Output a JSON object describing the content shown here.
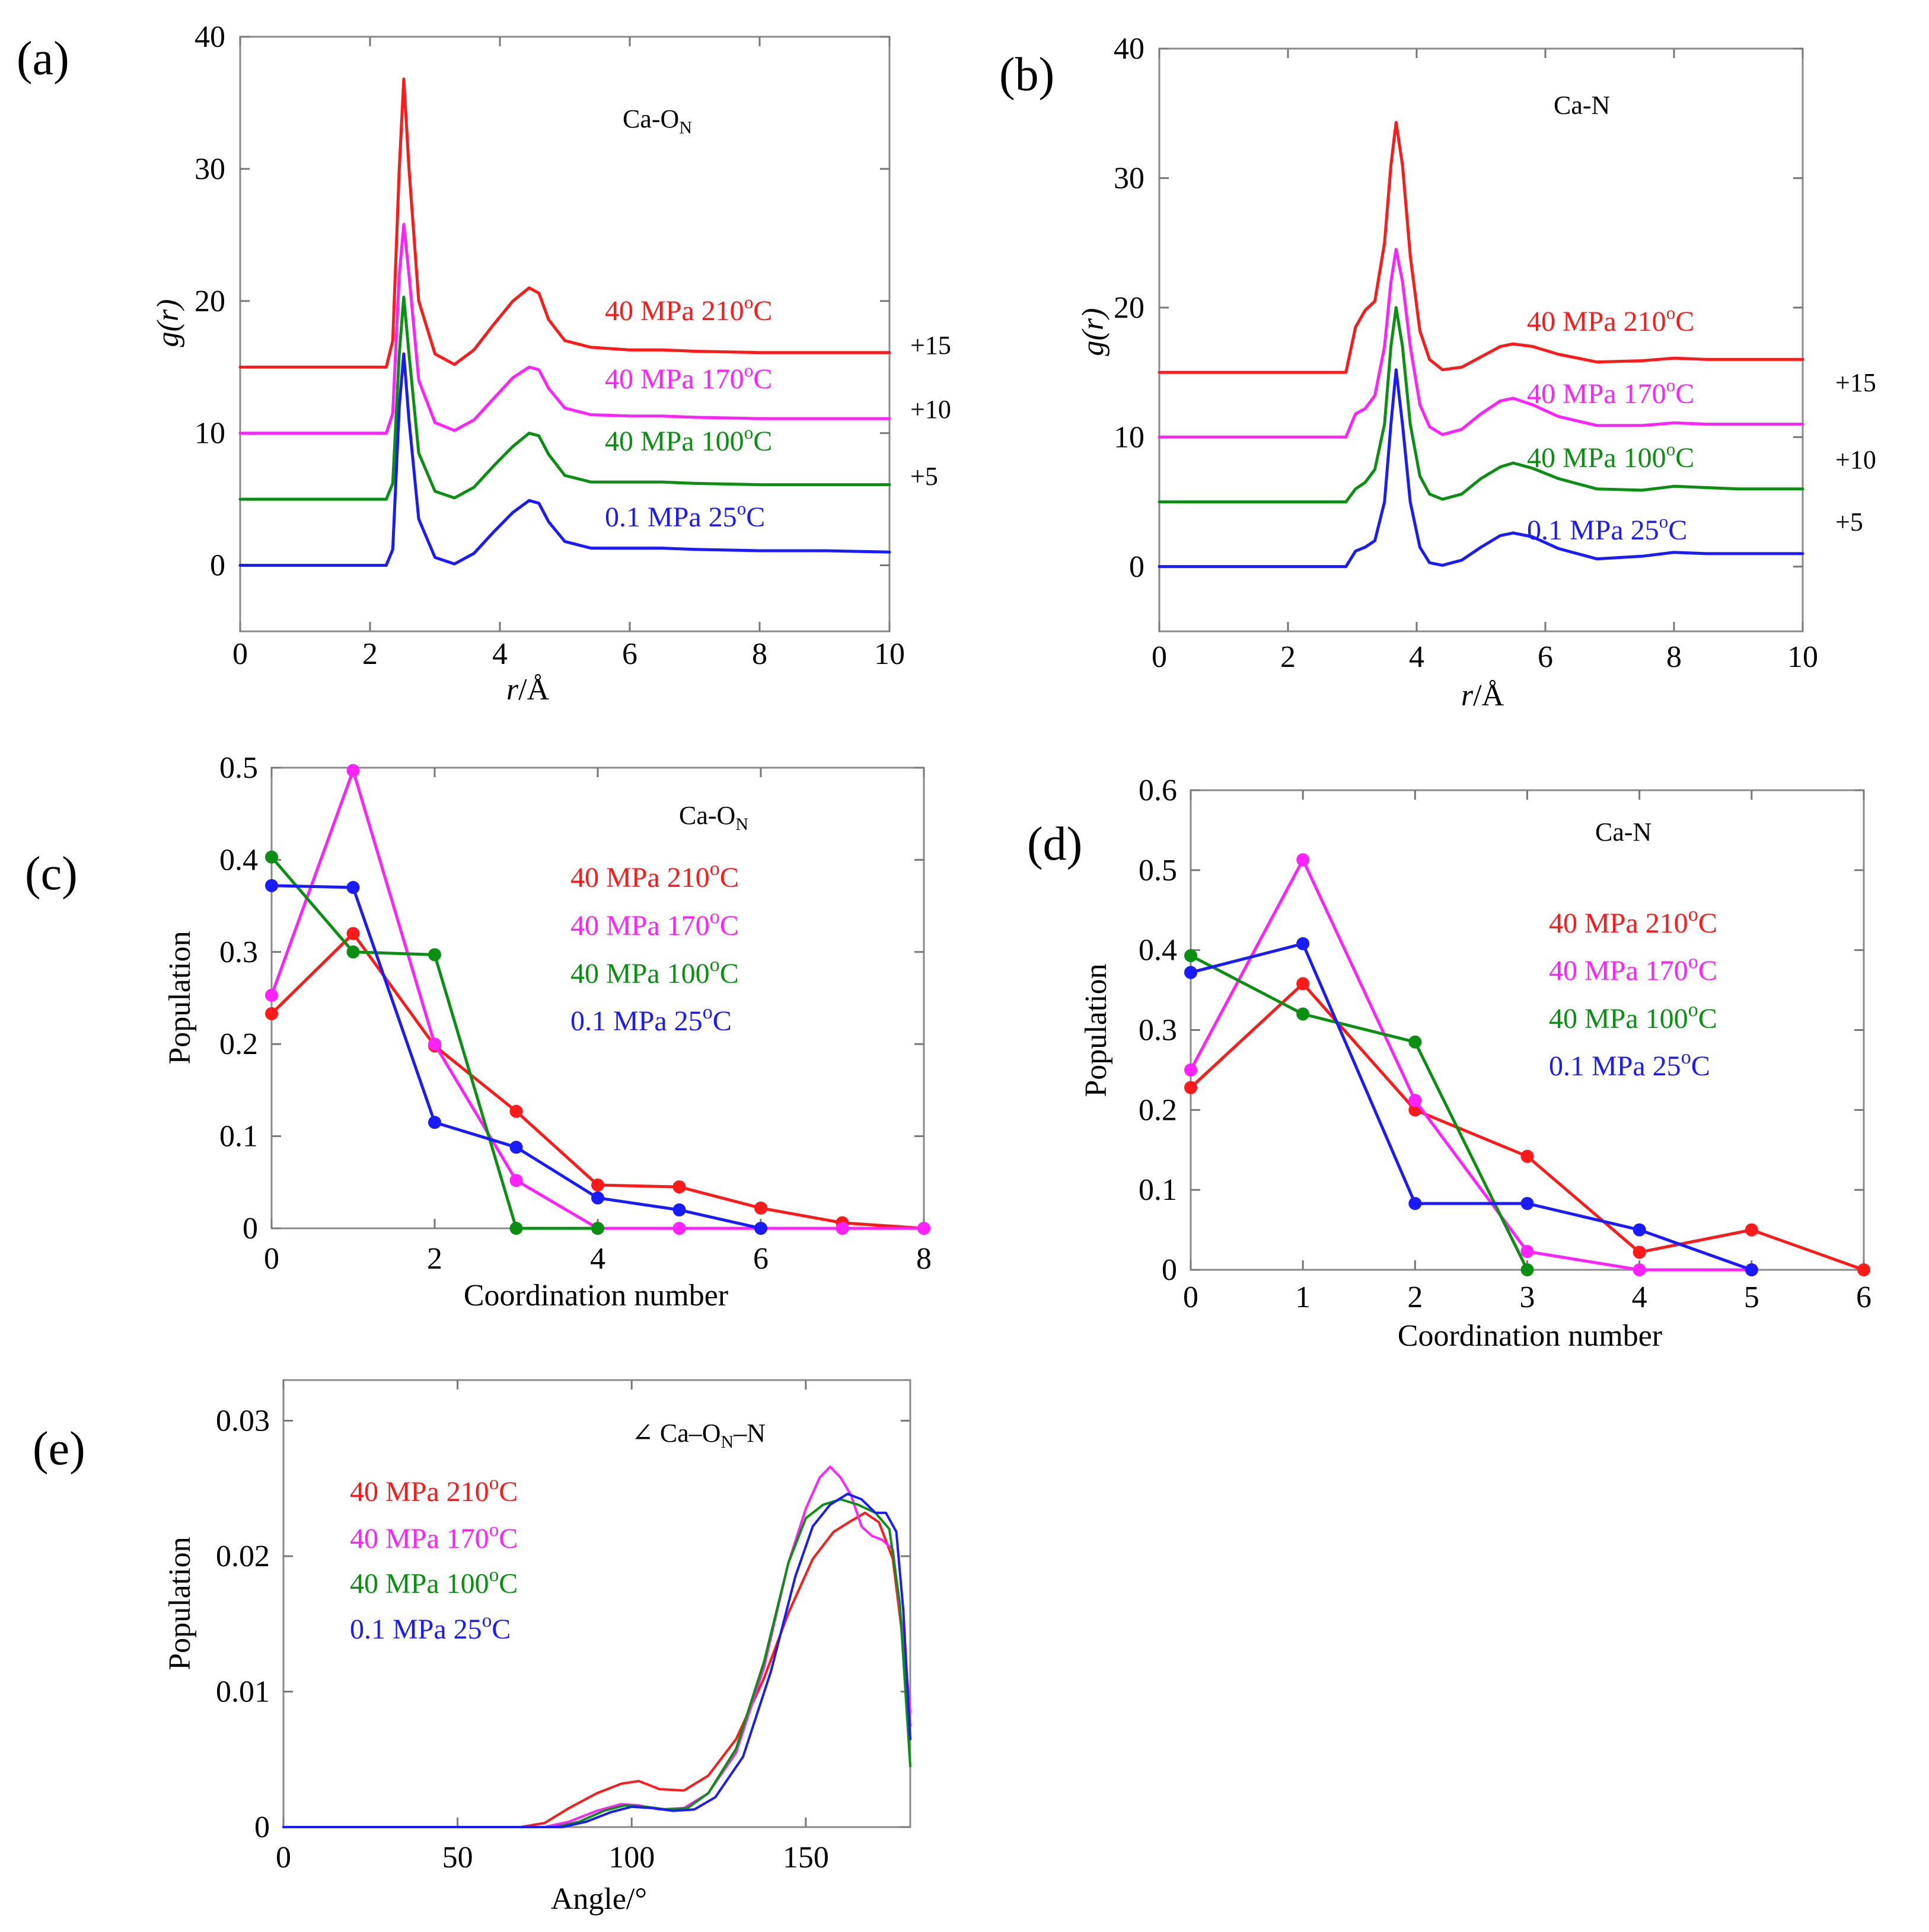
{
  "colors": {
    "red": "#ff1a1a",
    "magenta": "#ff22ff",
    "green": "#0b8f12",
    "blue": "#1a1aff"
  },
  "chart_data": [
    {
      "panel": "(a)",
      "type": "line",
      "annotation_main": "Ca-O",
      "annotation_sub": "N",
      "xlabel_italic": "r",
      "xlabel_rest": "/Å",
      "ylabel_italic": "g",
      "ylabel_rest": "(r)",
      "xlim": [
        0,
        10
      ],
      "ylim": [
        -5,
        40
      ],
      "xticks": [
        "0",
        "2",
        "4",
        "6",
        "8",
        "10"
      ],
      "yticks": [
        "0",
        "10",
        "20",
        "30",
        "40"
      ],
      "offset_labels": [
        "+15",
        "+10",
        "+5"
      ],
      "offsets": [
        15,
        10,
        5,
        0
      ],
      "series": [
        {
          "name": "40 MPa  210°C",
          "base": "40 MPa  210",
          "color": "red",
          "x": [
            0,
            2.25,
            2.35,
            2.45,
            2.52,
            2.6,
            2.75,
            3.0,
            3.3,
            3.6,
            3.9,
            4.2,
            4.45,
            4.6,
            4.75,
            5.0,
            5.4,
            6.0,
            6.5,
            7.0,
            8.0,
            9.0,
            10.0
          ],
          "y": [
            0,
            0,
            2.0,
            15.0,
            21.8,
            15.0,
            5.0,
            1.0,
            0.2,
            1.3,
            3.2,
            5.0,
            6.0,
            5.6,
            3.6,
            2.0,
            1.5,
            1.3,
            1.3,
            1.2,
            1.1,
            1.1,
            1.1
          ]
        },
        {
          "name": "40 MPa  170°C",
          "base": "40 MPa  170",
          "color": "magenta",
          "x": [
            0,
            2.25,
            2.35,
            2.45,
            2.52,
            2.6,
            2.75,
            3.0,
            3.3,
            3.6,
            3.9,
            4.2,
            4.45,
            4.6,
            4.75,
            5.0,
            5.4,
            6.0,
            6.5,
            7.0,
            8.0,
            9.0,
            10.0
          ],
          "y": [
            0,
            0,
            1.5,
            12.0,
            15.8,
            12.0,
            4.0,
            0.8,
            0.2,
            1.0,
            2.6,
            4.2,
            5.0,
            4.8,
            3.4,
            1.9,
            1.4,
            1.3,
            1.3,
            1.2,
            1.1,
            1.1,
            1.1
          ]
        },
        {
          "name": "40 MPa  100°C",
          "base": "40 MPa  100",
          "color": "green",
          "x": [
            0,
            2.25,
            2.35,
            2.45,
            2.52,
            2.6,
            2.75,
            3.0,
            3.3,
            3.6,
            3.9,
            4.2,
            4.45,
            4.6,
            4.75,
            5.0,
            5.4,
            6.0,
            6.5,
            7.0,
            8.0,
            9.0,
            10.0
          ],
          "y": [
            0,
            0,
            1.2,
            11.0,
            15.3,
            11.0,
            3.5,
            0.6,
            0.1,
            0.9,
            2.5,
            4.0,
            5.0,
            4.8,
            3.4,
            1.8,
            1.3,
            1.3,
            1.3,
            1.2,
            1.1,
            1.1,
            1.1
          ]
        },
        {
          "name": "0.1 MPa  25°C",
          "base": "0.1 MPa  25",
          "color": "blue",
          "x": [
            0,
            2.25,
            2.35,
            2.45,
            2.52,
            2.6,
            2.75,
            3.0,
            3.3,
            3.6,
            3.9,
            4.2,
            4.45,
            4.6,
            4.75,
            5.0,
            5.4,
            6.0,
            6.5,
            7.0,
            8.0,
            9.0,
            10.0
          ],
          "y": [
            0,
            0,
            1.2,
            12.0,
            16.0,
            11.0,
            3.5,
            0.6,
            0.1,
            0.9,
            2.5,
            4.0,
            4.9,
            4.7,
            3.3,
            1.8,
            1.3,
            1.3,
            1.3,
            1.2,
            1.1,
            1.1,
            1.0
          ]
        }
      ]
    },
    {
      "panel": "(b)",
      "type": "line",
      "annotation_main": "Ca-N",
      "annotation_sub": "",
      "xlabel_italic": "r",
      "xlabel_rest": "/Å",
      "ylabel_italic": "g",
      "ylabel_rest": "(r)",
      "xlim": [
        0,
        10
      ],
      "ylim": [
        -5,
        40
      ],
      "xticks": [
        "0",
        "2",
        "4",
        "6",
        "8",
        "10"
      ],
      "yticks": [
        "0",
        "10",
        "20",
        "30",
        "40"
      ],
      "offset_labels": [
        "+15",
        "+10",
        "+5"
      ],
      "offsets": [
        15,
        10,
        5,
        0
      ],
      "series": [
        {
          "name": "40 MPa  210°C",
          "base": "40 MPa  210",
          "color": "red",
          "x": [
            0,
            2.9,
            3.05,
            3.2,
            3.35,
            3.5,
            3.6,
            3.68,
            3.78,
            3.9,
            4.05,
            4.2,
            4.4,
            4.7,
            5.0,
            5.3,
            5.5,
            5.8,
            6.2,
            6.8,
            7.5,
            8.0,
            8.5,
            9.0,
            10.0
          ],
          "y": [
            0,
            0,
            3.5,
            4.8,
            5.5,
            10.0,
            16.0,
            19.3,
            16.0,
            9.0,
            3.2,
            1.0,
            0.2,
            0.4,
            1.2,
            2.0,
            2.2,
            2.0,
            1.4,
            0.8,
            0.9,
            1.1,
            1.0,
            1.0,
            1.0
          ]
        },
        {
          "name": "40 MPa  170°C",
          "base": "40 MPa  170",
          "color": "magenta",
          "x": [
            0,
            2.9,
            3.05,
            3.2,
            3.35,
            3.5,
            3.6,
            3.68,
            3.78,
            3.9,
            4.05,
            4.2,
            4.4,
            4.7,
            5.0,
            5.3,
            5.5,
            5.8,
            6.2,
            6.8,
            7.5,
            8.0,
            8.5,
            9.0,
            10.0
          ],
          "y": [
            0,
            0,
            1.8,
            2.2,
            3.2,
            7.0,
            12.0,
            14.5,
            12.0,
            7.0,
            2.5,
            0.8,
            0.2,
            0.6,
            1.8,
            2.8,
            3.0,
            2.5,
            1.6,
            0.9,
            0.9,
            1.1,
            1.0,
            1.0,
            1.0
          ]
        },
        {
          "name": "40 MPa  100°C",
          "base": "40 MPa  100",
          "color": "green",
          "x": [
            0,
            2.9,
            3.05,
            3.2,
            3.35,
            3.5,
            3.6,
            3.68,
            3.78,
            3.9,
            4.05,
            4.2,
            4.4,
            4.7,
            5.0,
            5.3,
            5.5,
            5.8,
            6.2,
            6.8,
            7.5,
            8.0,
            8.5,
            9.0,
            10.0
          ],
          "y": [
            0,
            0,
            1.0,
            1.5,
            2.5,
            6.0,
            12.0,
            15.0,
            12.0,
            6.0,
            2.0,
            0.6,
            0.2,
            0.6,
            1.8,
            2.7,
            3.0,
            2.6,
            1.8,
            1.0,
            0.9,
            1.2,
            1.1,
            1.0,
            1.0
          ]
        },
        {
          "name": "0.1 MPa  25°C",
          "base": "0.1 MPa  25",
          "color": "blue",
          "x": [
            0,
            2.9,
            3.05,
            3.2,
            3.35,
            3.5,
            3.6,
            3.68,
            3.78,
            3.9,
            4.05,
            4.2,
            4.4,
            4.7,
            5.0,
            5.3,
            5.5,
            5.8,
            6.2,
            6.8,
            7.5,
            8.0,
            8.5,
            9.0,
            10.0
          ],
          "y": [
            0,
            0,
            1.2,
            1.5,
            2.0,
            5.0,
            11.0,
            15.2,
            11.0,
            5.0,
            1.5,
            0.3,
            0.1,
            0.5,
            1.5,
            2.4,
            2.6,
            2.3,
            1.4,
            0.6,
            0.8,
            1.1,
            1.0,
            1.0,
            1.0
          ]
        }
      ]
    },
    {
      "panel": "(c)",
      "type": "line",
      "annotation_main": "Ca-O",
      "annotation_sub": "N",
      "xlabel": "Coordination number",
      "ylabel": "Population",
      "xlim": [
        0,
        8
      ],
      "ylim": [
        0,
        0.5
      ],
      "xticks": [
        "0",
        "2",
        "4",
        "6",
        "8"
      ],
      "yticks": [
        "0",
        "0.1",
        "0.2",
        "0.3",
        "0.4",
        "0.5"
      ],
      "series": [
        {
          "name": "40 MPa  210°C",
          "base": "40 MPa  210",
          "color": "red",
          "x": [
            0,
            1,
            2,
            3,
            4,
            5,
            6,
            7,
            8
          ],
          "y": [
            0.233,
            0.32,
            0.198,
            0.127,
            0.047,
            0.045,
            0.022,
            0.006,
            0.0
          ]
        },
        {
          "name": "40 MPa  170°C",
          "base": "40 MPa  170",
          "color": "magenta",
          "x": [
            0,
            1,
            2,
            3,
            4,
            5,
            6,
            7,
            8
          ],
          "y": [
            0.253,
            0.497,
            0.2,
            0.052,
            0.0,
            0.0,
            0.0,
            0.0,
            0.0
          ]
        },
        {
          "name": "40 MPa  100°C",
          "base": "40 MPa  100",
          "color": "green",
          "x": [
            0,
            1,
            2,
            3,
            4
          ],
          "y": [
            0.403,
            0.3,
            0.297,
            0.0,
            0.0
          ]
        },
        {
          "name": "0.1 MPa  25°C",
          "base": "0.1 MPa  25",
          "color": "blue",
          "x": [
            0,
            1,
            2,
            3,
            4,
            5,
            6
          ],
          "y": [
            0.372,
            0.37,
            0.115,
            0.088,
            0.033,
            0.02,
            0.0
          ]
        }
      ]
    },
    {
      "panel": "(d)",
      "type": "line",
      "annotation_main": "Ca-N",
      "annotation_sub": "",
      "xlabel": "Coordination number",
      "ylabel": "Population",
      "xlim": [
        0,
        6
      ],
      "ylim": [
        0,
        0.6
      ],
      "xticks": [
        "0",
        "1",
        "2",
        "3",
        "4",
        "5",
        "6"
      ],
      "yticks": [
        "0",
        "0.1",
        "0.2",
        "0.3",
        "0.4",
        "0.5",
        "0.6"
      ],
      "series": [
        {
          "name": "40 MPa  210°C",
          "base": "40 MPa  210",
          "color": "red",
          "x": [
            0,
            1,
            2,
            3,
            4,
            5,
            6
          ],
          "y": [
            0.228,
            0.358,
            0.2,
            0.142,
            0.022,
            0.05,
            0.0
          ]
        },
        {
          "name": "40 MPa  170°C",
          "base": "40 MPa  170",
          "color": "magenta",
          "x": [
            0,
            1,
            2,
            3,
            4,
            5
          ],
          "y": [
            0.25,
            0.513,
            0.212,
            0.023,
            0.0,
            0.0
          ]
        },
        {
          "name": "40 MPa  100°C",
          "base": "40 MPa  100",
          "color": "green",
          "x": [
            0,
            1,
            2,
            3
          ],
          "y": [
            0.393,
            0.32,
            0.285,
            0.0
          ]
        },
        {
          "name": "0.1 MPa  25°C",
          "base": "0.1 MPa  25",
          "color": "blue",
          "x": [
            0,
            1,
            2,
            3,
            4,
            5
          ],
          "y": [
            0.372,
            0.408,
            0.083,
            0.083,
            0.05,
            0.0
          ]
        }
      ]
    },
    {
      "panel": "(e)",
      "type": "line",
      "annotation_main": "∠ Ca–O",
      "annotation_sub": "N",
      "annotation_tail": "–N",
      "xlabel": "Angle/°",
      "ylabel": "Population",
      "xlim": [
        0,
        180
      ],
      "ylim": [
        0,
        0.033
      ],
      "xticks": [
        "0",
        "50",
        "100",
        "150"
      ],
      "yticks": [
        "0",
        "0.01",
        "0.02",
        "0.03"
      ],
      "series": [
        {
          "name": "40 MPa  210°C",
          "base": "40 MPa  210",
          "color": "red",
          "x": [
            0,
            68,
            75,
            82,
            90,
            97,
            102,
            108,
            115,
            122,
            130,
            138,
            145,
            152,
            158,
            163,
            167,
            171,
            175,
            178,
            180
          ],
          "y": [
            0,
            0,
            0.0003,
            0.0014,
            0.0025,
            0.0032,
            0.0034,
            0.0028,
            0.0027,
            0.0038,
            0.0065,
            0.011,
            0.0158,
            0.0198,
            0.0218,
            0.0226,
            0.0232,
            0.0225,
            0.0198,
            0.0135,
            0.0075
          ]
        },
        {
          "name": "40 MPa  170°C",
          "base": "40 MPa  170",
          "color": "magenta",
          "x": [
            0,
            75,
            82,
            90,
            97,
            102,
            108,
            115,
            122,
            130,
            138,
            145,
            150,
            154,
            157,
            160,
            163,
            166,
            169,
            172,
            175,
            178,
            180
          ],
          "y": [
            0,
            0,
            0.0004,
            0.0012,
            0.0017,
            0.0016,
            0.0013,
            0.0014,
            0.0025,
            0.0055,
            0.0118,
            0.0195,
            0.0235,
            0.0258,
            0.0266,
            0.0258,
            0.0245,
            0.0222,
            0.0215,
            0.0212,
            0.0205,
            0.014,
            0.0085
          ]
        },
        {
          "name": "40 MPa  100°C",
          "base": "40 MPa  100",
          "color": "green",
          "x": [
            0,
            78,
            85,
            92,
            98,
            104,
            110,
            116,
            122,
            130,
            138,
            145,
            150,
            155,
            160,
            165,
            170,
            174,
            177,
            180
          ],
          "y": [
            0,
            0,
            0.0004,
            0.0012,
            0.0016,
            0.0015,
            0.0013,
            0.0014,
            0.0025,
            0.0058,
            0.0122,
            0.0195,
            0.0228,
            0.0238,
            0.0242,
            0.0238,
            0.0232,
            0.022,
            0.0165,
            0.0045
          ]
        },
        {
          "name": "0.1 MPa  25°C",
          "base": "0.1 MPa  25",
          "color": "blue",
          "x": [
            0,
            80,
            87,
            94,
            100,
            106,
            112,
            118,
            124,
            132,
            140,
            147,
            152,
            157,
            162,
            166,
            170,
            173,
            176,
            178,
            180
          ],
          "y": [
            0,
            0,
            0.0004,
            0.0011,
            0.0015,
            0.0014,
            0.0012,
            0.0013,
            0.0022,
            0.0052,
            0.0115,
            0.0185,
            0.0222,
            0.0238,
            0.0246,
            0.0242,
            0.0232,
            0.0232,
            0.0218,
            0.016,
            0.0065
          ]
        }
      ]
    }
  ]
}
